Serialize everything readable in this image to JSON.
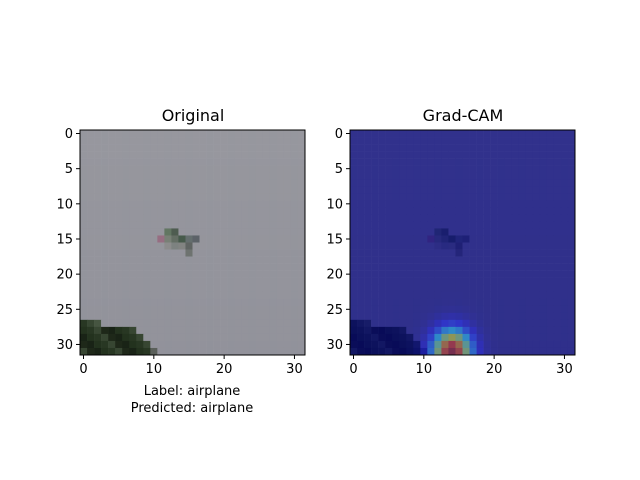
{
  "chart_data": [
    {
      "type": "heatmap",
      "title": "Original",
      "xlim": [
        -0.5,
        31.5
      ],
      "ylim": [
        31.5,
        -0.5
      ],
      "xticks": [
        0,
        10,
        20,
        30
      ],
      "yticks": [
        0,
        5,
        10,
        15,
        20,
        25,
        30
      ],
      "xtick_labels": [
        "0",
        "10",
        "20",
        "30"
      ],
      "ytick_labels": [
        "0",
        "5",
        "10",
        "15",
        "20",
        "25",
        "30"
      ],
      "grid": false,
      "caption": [
        "Label: airplane",
        "Predicted: airplane"
      ]
    },
    {
      "type": "heatmap",
      "title": "Grad-CAM",
      "xlim": [
        -0.5,
        31.5
      ],
      "ylim": [
        31.5,
        -0.5
      ],
      "xticks": [
        0,
        10,
        20,
        30
      ],
      "yticks": [
        0,
        5,
        10,
        15,
        20,
        25,
        30
      ],
      "xtick_labels": [
        "0",
        "10",
        "20",
        "30"
      ],
      "ytick_labels": [
        "0",
        "5",
        "10",
        "15",
        "20",
        "25",
        "30"
      ],
      "grid": false,
      "colormap": "jet",
      "peak": {
        "x": 14,
        "y": 31
      }
    }
  ]
}
